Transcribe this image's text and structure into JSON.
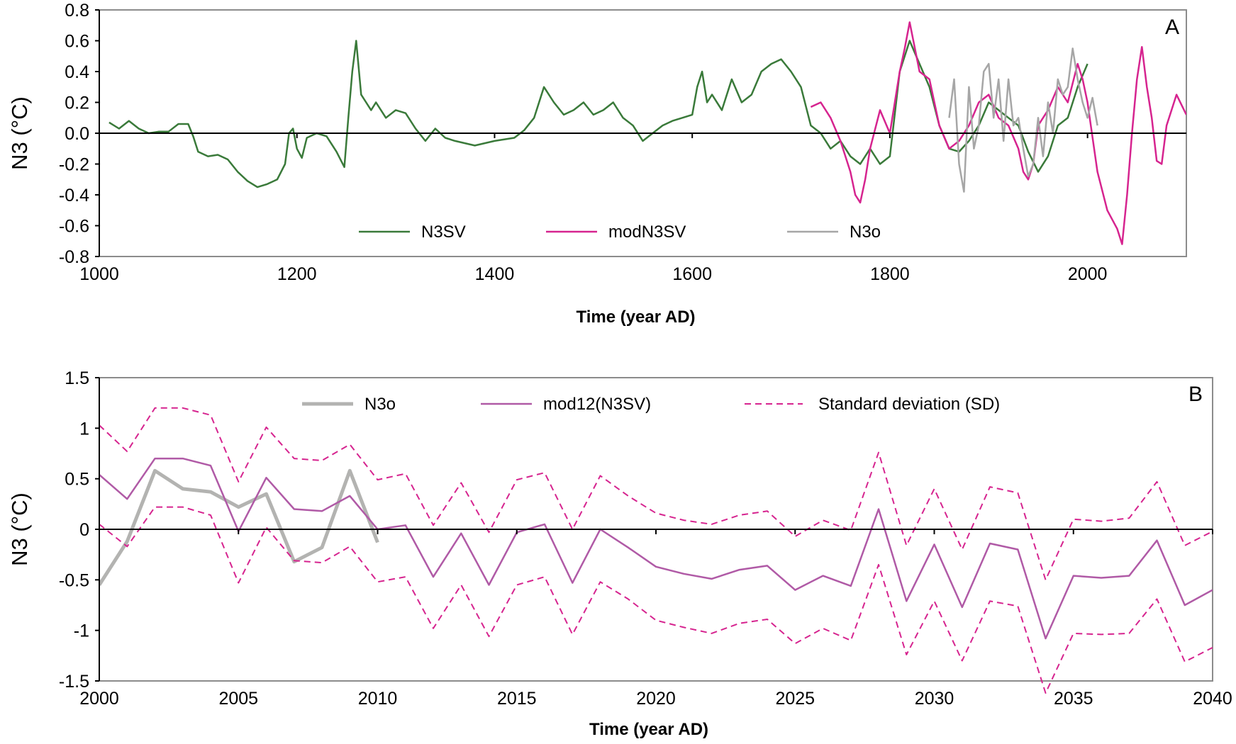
{
  "colors": {
    "n3sv": "#3a7a3a",
    "modn3sv": "#d6248f",
    "n3o_a": "#a6a6a6",
    "n3o_b": "#b3b3b1",
    "mod12": "#b05aa6",
    "sd": "#d6248f",
    "frame": "#8c8c8c",
    "axis": "#000000"
  },
  "chart_data": [
    {
      "panel": "A",
      "type": "line",
      "title": "",
      "xlabel": "Time (year AD)",
      "ylabel": "N3 (°C)",
      "xlim": [
        1000,
        2100
      ],
      "ylim": [
        -0.8,
        0.8
      ],
      "x_ticks": [
        1000,
        1200,
        1400,
        1600,
        1800,
        2000
      ],
      "x_tick_labels": [
        "1000",
        "1200",
        "1400",
        "1600",
        "1800",
        "2000"
      ],
      "y_ticks": [
        -0.8,
        -0.6,
        -0.4,
        -0.2,
        0.0,
        0.2,
        0.4,
        0.6,
        0.8
      ],
      "y_tick_labels": [
        "-0.8",
        "-0.6",
        "-0.4",
        "-0.2",
        "0.0",
        "0.2",
        "0.4",
        "0.6",
        "0.8"
      ],
      "legend_position": "bottom-center",
      "grid": false,
      "series": [
        {
          "name": "N3SV",
          "color_key": "n3sv",
          "x": [
            1010,
            1020,
            1030,
            1040,
            1050,
            1060,
            1070,
            1080,
            1090,
            1095,
            1100,
            1110,
            1120,
            1130,
            1140,
            1150,
            1160,
            1170,
            1180,
            1188,
            1192,
            1196,
            1200,
            1205,
            1210,
            1220,
            1230,
            1240,
            1248,
            1252,
            1256,
            1260,
            1265,
            1270,
            1275,
            1280,
            1290,
            1300,
            1310,
            1320,
            1330,
            1340,
            1350,
            1360,
            1380,
            1400,
            1420,
            1430,
            1440,
            1450,
            1460,
            1470,
            1480,
            1490,
            1500,
            1510,
            1520,
            1530,
            1540,
            1550,
            1560,
            1570,
            1580,
            1590,
            1600,
            1605,
            1610,
            1615,
            1620,
            1630,
            1640,
            1650,
            1660,
            1670,
            1680,
            1690,
            1700,
            1710,
            1720,
            1730,
            1740,
            1750,
            1760,
            1770,
            1780,
            1790,
            1800,
            1810,
            1820,
            1830,
            1840,
            1850,
            1860,
            1870,
            1880,
            1890,
            1900,
            1910,
            1920,
            1930,
            1940,
            1950,
            1960,
            1970,
            1980,
            1990,
            2000
          ],
          "y": [
            0.07,
            0.03,
            0.08,
            0.03,
            0.0,
            0.01,
            0.01,
            0.06,
            0.06,
            -0.02,
            -0.12,
            -0.15,
            -0.14,
            -0.17,
            -0.25,
            -0.31,
            -0.35,
            -0.33,
            -0.3,
            -0.2,
            0.0,
            0.03,
            -0.1,
            -0.16,
            -0.03,
            0.0,
            -0.02,
            -0.12,
            -0.22,
            0.1,
            0.4,
            0.6,
            0.25,
            0.2,
            0.15,
            0.2,
            0.1,
            0.15,
            0.13,
            0.03,
            -0.05,
            0.03,
            -0.03,
            -0.05,
            -0.08,
            -0.05,
            -0.03,
            0.02,
            0.1,
            0.3,
            0.2,
            0.12,
            0.15,
            0.2,
            0.12,
            0.15,
            0.2,
            0.1,
            0.05,
            -0.05,
            0.0,
            0.05,
            0.08,
            0.1,
            0.12,
            0.3,
            0.4,
            0.2,
            0.25,
            0.15,
            0.35,
            0.2,
            0.25,
            0.4,
            0.45,
            0.48,
            0.4,
            0.3,
            0.05,
            0.0,
            -0.1,
            -0.05,
            -0.15,
            -0.2,
            -0.1,
            -0.2,
            -0.15,
            0.4,
            0.6,
            0.45,
            0.3,
            0.05,
            -0.1,
            -0.12,
            -0.05,
            0.05,
            0.2,
            0.15,
            0.1,
            0.05,
            -0.12,
            -0.25,
            -0.15,
            0.05,
            0.1,
            0.3,
            0.45
          ]
        },
        {
          "name": "modN3SV",
          "color_key": "modn3sv",
          "x": [
            1720,
            1730,
            1740,
            1750,
            1760,
            1765,
            1770,
            1775,
            1780,
            1790,
            1800,
            1810,
            1815,
            1820,
            1830,
            1840,
            1850,
            1860,
            1870,
            1880,
            1890,
            1900,
            1910,
            1920,
            1930,
            1935,
            1940,
            1945,
            1950,
            1960,
            1970,
            1980,
            1990,
            1995,
            2000,
            2010,
            2020,
            2030,
            2035,
            2040,
            2045,
            2050,
            2055,
            2060,
            2065,
            2070,
            2075,
            2080,
            2090,
            2100
          ],
          "y": [
            0.17,
            0.2,
            0.1,
            -0.05,
            -0.25,
            -0.4,
            -0.45,
            -0.3,
            -0.1,
            0.15,
            0.0,
            0.4,
            0.55,
            0.72,
            0.4,
            0.35,
            0.05,
            -0.1,
            -0.05,
            0.05,
            0.2,
            0.25,
            0.1,
            0.05,
            -0.1,
            -0.25,
            -0.3,
            -0.2,
            0.05,
            0.15,
            0.3,
            0.2,
            0.45,
            0.35,
            0.2,
            -0.25,
            -0.5,
            -0.62,
            -0.72,
            -0.4,
            0.0,
            0.35,
            0.56,
            0.3,
            0.1,
            -0.18,
            -0.2,
            0.05,
            0.25,
            0.12
          ]
        },
        {
          "name": "N3o",
          "color_key": "n3o_a",
          "x": [
            1860,
            1865,
            1870,
            1875,
            1880,
            1885,
            1890,
            1895,
            1900,
            1905,
            1910,
            1915,
            1920,
            1925,
            1930,
            1935,
            1940,
            1945,
            1950,
            1955,
            1960,
            1965,
            1970,
            1975,
            1980,
            1985,
            1990,
            1995,
            2000,
            2005,
            2010
          ],
          "y": [
            0.1,
            0.35,
            -0.2,
            -0.38,
            0.3,
            -0.1,
            0.05,
            0.4,
            0.45,
            0.1,
            0.35,
            -0.05,
            0.35,
            0.05,
            0.1,
            -0.1,
            -0.28,
            -0.2,
            0.1,
            -0.15,
            0.2,
            0.0,
            0.35,
            0.25,
            0.3,
            0.55,
            0.35,
            0.2,
            0.1,
            0.23,
            0.05
          ]
        }
      ]
    },
    {
      "panel": "B",
      "type": "line",
      "title": "",
      "xlabel": "Time (year AD)",
      "ylabel": "N3 (°C)",
      "xlim": [
        2000,
        2040
      ],
      "ylim": [
        -1.5,
        1.5
      ],
      "x_ticks": [
        2000,
        2005,
        2010,
        2015,
        2020,
        2025,
        2030,
        2035,
        2040
      ],
      "x_tick_labels": [
        "2000",
        "2005",
        "2010",
        "2015",
        "2020",
        "2025",
        "2030",
        "2035",
        "2040"
      ],
      "y_ticks": [
        -1.5,
        -1,
        -0.5,
        0,
        0.5,
        1,
        1.5
      ],
      "y_tick_labels": [
        "-1.5",
        "-1",
        "-0.5",
        "0",
        "0.5",
        "1",
        "1.5"
      ],
      "legend_position": "top-center",
      "grid": false,
      "series": [
        {
          "name": "N3o",
          "color_key": "n3o_b",
          "x": [
            2000,
            2001,
            2002,
            2003,
            2004,
            2005,
            2006,
            2007,
            2008,
            2009,
            2010
          ],
          "y": [
            -0.55,
            -0.12,
            0.58,
            0.4,
            0.37,
            0.22,
            0.35,
            -0.32,
            -0.18,
            0.58,
            -0.13
          ]
        },
        {
          "name": "mod12(N3SV)",
          "color_key": "mod12",
          "x": [
            2000,
            2001,
            2002,
            2003,
            2004,
            2005,
            2006,
            2007,
            2008,
            2009,
            2010,
            2011,
            2012,
            2013,
            2014,
            2015,
            2016,
            2017,
            2018,
            2019,
            2020,
            2021,
            2022,
            2023,
            2024,
            2025,
            2026,
            2027,
            2028,
            2029,
            2030,
            2031,
            2032,
            2033,
            2034,
            2035,
            2036,
            2037,
            2038,
            2039,
            2040
          ],
          "y": [
            0.54,
            0.3,
            0.7,
            0.7,
            0.63,
            -0.02,
            0.51,
            0.2,
            0.18,
            0.33,
            0.0,
            0.04,
            -0.47,
            -0.04,
            -0.55,
            -0.03,
            0.05,
            -0.53,
            0.0,
            -0.18,
            -0.37,
            -0.44,
            -0.49,
            -0.4,
            -0.36,
            -0.6,
            -0.46,
            -0.56,
            0.2,
            -0.71,
            -0.15,
            -0.77,
            -0.14,
            -0.2,
            -1.08,
            -0.46,
            -0.48,
            -0.46,
            -0.11,
            -0.75,
            -0.6
          ]
        },
        {
          "name": "Standard deviation (SD)",
          "color_key": "sd",
          "dashed": true,
          "upper": {
            "x": [
              2000,
              2001,
              2002,
              2003,
              2004,
              2005,
              2006,
              2007,
              2008,
              2009,
              2010,
              2011,
              2012,
              2013,
              2014,
              2015,
              2016,
              2017,
              2018,
              2019,
              2020,
              2021,
              2022,
              2023,
              2024,
              2025,
              2026,
              2027,
              2028,
              2029,
              2030,
              2031,
              2032,
              2033,
              2034,
              2035,
              2036,
              2037,
              2038,
              2039,
              2040
            ],
            "y": [
              1.03,
              0.77,
              1.2,
              1.2,
              1.13,
              0.47,
              1.01,
              0.7,
              0.68,
              0.84,
              0.49,
              0.55,
              0.04,
              0.46,
              -0.03,
              0.49,
              0.56,
              0.0,
              0.53,
              0.33,
              0.16,
              0.09,
              0.05,
              0.14,
              0.18,
              -0.07,
              0.09,
              -0.01,
              0.76,
              -0.16,
              0.4,
              -0.2,
              0.42,
              0.36,
              -0.5,
              0.1,
              0.08,
              0.11,
              0.47,
              -0.16,
              -0.02
            ]
          },
          "lower": {
            "x": [
              2000,
              2001,
              2002,
              2003,
              2004,
              2005,
              2006,
              2007,
              2008,
              2009,
              2010,
              2011,
              2012,
              2013,
              2014,
              2015,
              2016,
              2017,
              2018,
              2019,
              2020,
              2021,
              2022,
              2023,
              2024,
              2025,
              2026,
              2027,
              2028,
              2029,
              2030,
              2031,
              2032,
              2033,
              2034,
              2035,
              2036,
              2037,
              2038,
              2039,
              2040
            ],
            "y": [
              0.05,
              -0.17,
              0.22,
              0.22,
              0.14,
              -0.53,
              0.02,
              -0.31,
              -0.33,
              -0.17,
              -0.52,
              -0.47,
              -0.98,
              -0.55,
              -1.06,
              -0.55,
              -0.47,
              -1.04,
              -0.52,
              -0.69,
              -0.9,
              -0.97,
              -1.03,
              -0.93,
              -0.89,
              -1.13,
              -0.98,
              -1.1,
              -0.35,
              -1.24,
              -0.71,
              -1.3,
              -0.71,
              -0.76,
              -1.62,
              -1.03,
              -1.04,
              -1.03,
              -0.69,
              -1.31,
              -1.17
            ]
          }
        }
      ]
    }
  ]
}
